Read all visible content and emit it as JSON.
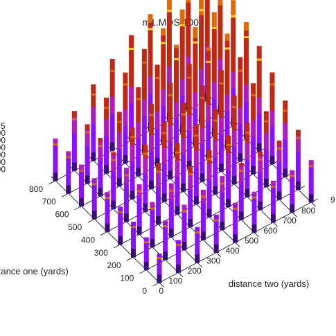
{
  "chart_data": {
    "type": "bar3d",
    "title": "m1.MDS.1000",
    "xlabel": "distance two (yards)",
    "ylabel": "distance one (yards)",
    "x_ticks": [
      "0",
      "100",
      "200",
      "300",
      "400",
      "500",
      "600",
      "700",
      "800"
    ],
    "y_ticks": [
      "0",
      "100",
      "200",
      "300",
      "400",
      "500",
      "600",
      "700",
      "800"
    ],
    "z_ticks": [
      "00",
      "00",
      "00",
      "00",
      "00",
      "00"
    ],
    "corner_x_label": "9",
    "corner_y_label": "5",
    "grid": true,
    "x": [
      0,
      100,
      200,
      300,
      400,
      500,
      600,
      700,
      800
    ],
    "y": [
      0,
      100,
      200,
      300,
      400,
      500,
      600,
      700,
      800
    ],
    "values": [
      [
        1.0,
        1.12,
        1.22,
        1.3,
        1.36,
        1.4,
        1.43,
        1.45,
        1.45
      ],
      [
        1.12,
        1.35,
        1.55,
        1.72,
        1.85,
        1.95,
        2.0,
        2.03,
        2.05
      ],
      [
        1.22,
        1.55,
        1.85,
        2.1,
        2.3,
        2.45,
        2.55,
        2.6,
        2.62
      ],
      [
        1.3,
        1.72,
        2.1,
        2.45,
        2.72,
        2.92,
        3.05,
        3.12,
        3.15
      ],
      [
        1.36,
        1.85,
        2.3,
        2.72,
        3.05,
        3.3,
        3.48,
        3.58,
        3.62
      ],
      [
        1.4,
        1.95,
        2.45,
        2.92,
        3.3,
        3.6,
        3.82,
        3.95,
        4.0
      ],
      [
        1.43,
        2.0,
        2.55,
        3.05,
        3.48,
        3.82,
        4.08,
        4.25,
        4.32
      ],
      [
        1.45,
        2.03,
        2.6,
        3.12,
        3.58,
        3.95,
        4.25,
        4.45,
        4.55
      ],
      [
        1.45,
        2.05,
        2.62,
        3.15,
        3.62,
        4.0,
        4.32,
        4.55,
        4.65
      ]
    ],
    "colors": {
      "low": "#3b0a7a",
      "violet": "#8a10ff",
      "purple": "#b01cc0",
      "red": "#c02814",
      "orange": "#e06a0a",
      "yellow": "#ffdf20",
      "grid": "#000000"
    }
  }
}
